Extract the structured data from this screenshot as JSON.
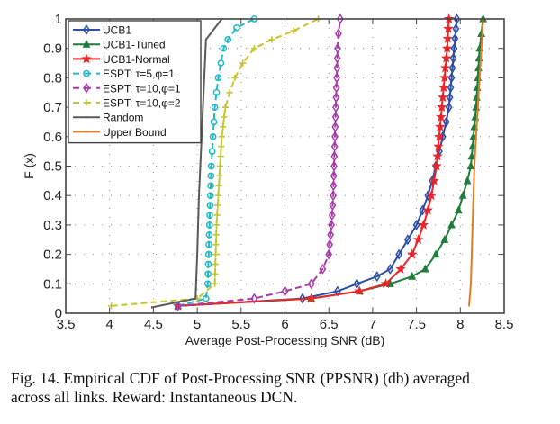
{
  "chart_data": {
    "type": "line",
    "title": "",
    "xlabel": "Average Post-Processing SNR (dB)",
    "ylabel": "F (x)",
    "xlim": [
      3.5,
      8.5
    ],
    "ylim": [
      0,
      1
    ],
    "xticks": [
      3.5,
      4,
      4.5,
      5,
      5.5,
      6,
      6.5,
      7,
      7.5,
      8,
      8.5
    ],
    "xtick_labels": [
      "3.5",
      "4",
      "4.5",
      "5",
      "5.5",
      "6",
      "6.5",
      "7",
      "7.5",
      "8",
      "8.5"
    ],
    "yticks": [
      0,
      0.1,
      0.2,
      0.3,
      0.4,
      0.5,
      0.6,
      0.7,
      0.8,
      0.9,
      1
    ],
    "ytick_labels": [
      "0",
      "0.1",
      "0.2",
      "0.3",
      "0.4",
      "0.5",
      "0.6",
      "0.7",
      "0.8",
      "0.9",
      "1"
    ],
    "grid": true,
    "legend_position": "top-left",
    "series": [
      {
        "name": "UCB1",
        "color": "#2e4fa8",
        "dash": "solid",
        "marker": "diamond",
        "x": [
          4.78,
          6.2,
          6.6,
          6.82,
          7.05,
          7.2,
          7.3,
          7.4,
          7.5,
          7.57,
          7.63,
          7.68,
          7.72,
          7.76,
          7.8,
          7.84,
          7.87,
          7.9,
          7.93,
          7.96
        ],
        "y": [
          0.025,
          0.05,
          0.075,
          0.1,
          0.125,
          0.15,
          0.2,
          0.25,
          0.3,
          0.35,
          0.4,
          0.45,
          0.5,
          0.55,
          0.6,
          0.65,
          0.7,
          0.8,
          0.9,
          1.0
        ]
      },
      {
        "name": "UCB1-Tuned",
        "color": "#1e7d3a",
        "dash": "solid",
        "marker": "triangle",
        "x": [
          4.78,
          6.3,
          6.85,
          7.2,
          7.45,
          7.6,
          7.72,
          7.82,
          7.9,
          7.98,
          8.03,
          8.08,
          8.12,
          8.15,
          8.18,
          8.2,
          8.22,
          8.24,
          8.26
        ],
        "y": [
          0.025,
          0.05,
          0.075,
          0.1,
          0.125,
          0.15,
          0.2,
          0.25,
          0.3,
          0.35,
          0.4,
          0.45,
          0.5,
          0.6,
          0.7,
          0.8,
          0.9,
          0.95,
          1.0
        ]
      },
      {
        "name": "UCB1-Normal",
        "color": "#e8262b",
        "dash": "solid",
        "marker": "star",
        "x": [
          4.78,
          6.3,
          6.85,
          7.15,
          7.32,
          7.45,
          7.52,
          7.58,
          7.63,
          7.67,
          7.7,
          7.73,
          7.76,
          7.79,
          7.82,
          7.85,
          7.87
        ],
        "y": [
          0.025,
          0.05,
          0.075,
          0.1,
          0.15,
          0.2,
          0.25,
          0.3,
          0.35,
          0.4,
          0.45,
          0.5,
          0.6,
          0.7,
          0.8,
          0.9,
          1.0
        ]
      },
      {
        "name": "ESPT: τ=5,φ=1",
        "color": "#22b8c4",
        "dash": "dashed",
        "marker": "circle",
        "x": [
          4.78,
          5.1,
          5.12,
          5.13,
          5.14,
          5.15,
          5.16,
          5.17,
          5.18,
          5.19,
          5.2,
          5.22,
          5.24,
          5.27,
          5.3,
          5.35,
          5.45,
          5.65
        ],
        "y": [
          0.025,
          0.05,
          0.1,
          0.2,
          0.3,
          0.4,
          0.5,
          0.55,
          0.6,
          0.65,
          0.7,
          0.75,
          0.8,
          0.85,
          0.9,
          0.93,
          0.97,
          1.0
        ]
      },
      {
        "name": "ESPT: τ=10,φ=1",
        "color": "#a73aa8",
        "dash": "dashed",
        "marker": "diamond",
        "x": [
          4.78,
          5.65,
          6.0,
          6.3,
          6.43,
          6.5,
          6.53,
          6.55,
          6.56,
          6.57,
          6.58,
          6.59,
          6.6,
          6.61,
          6.63
        ],
        "y": [
          0.025,
          0.05,
          0.075,
          0.1,
          0.15,
          0.2,
          0.3,
          0.4,
          0.5,
          0.6,
          0.7,
          0.8,
          0.9,
          0.95,
          1.0
        ]
      },
      {
        "name": "ESPT: τ=10,φ=2",
        "color": "#c4c431",
        "dash": "dashed",
        "marker": "plus",
        "x": [
          4.02,
          5.0,
          5.2,
          5.21,
          5.22,
          5.24,
          5.26,
          5.28,
          5.32,
          5.37,
          5.43,
          5.52,
          5.65,
          5.85,
          6.1,
          6.38
        ],
        "y": [
          0.025,
          0.05,
          0.1,
          0.2,
          0.3,
          0.4,
          0.5,
          0.6,
          0.7,
          0.75,
          0.8,
          0.85,
          0.9,
          0.93,
          0.96,
          1.0
        ]
      },
      {
        "name": "Random",
        "color": "#5a5a5a",
        "dash": "solid",
        "marker": "point",
        "x": [
          4.48,
          4.98,
          5.0,
          5.02,
          5.05,
          5.08,
          5.1,
          5.28
        ],
        "y": [
          0.02,
          0.05,
          0.2,
          0.4,
          0.6,
          0.8,
          0.93,
          1.0
        ]
      },
      {
        "name": "Upper Bound",
        "color": "#e07c23",
        "dash": "solid",
        "marker": "point",
        "x": [
          8.1,
          8.12,
          8.13,
          8.14,
          8.15,
          8.16,
          8.18,
          8.2,
          8.22,
          8.24,
          8.26
        ],
        "y": [
          0.025,
          0.1,
          0.2,
          0.3,
          0.4,
          0.5,
          0.6,
          0.7,
          0.8,
          0.9,
          1.0
        ]
      }
    ]
  },
  "caption": {
    "line1": "Fig. 14.  Empirical CDF of Post-Processing SNR (PPSNR) (db) averaged",
    "line2": "across all links. Reward: Instantaneous DCN."
  }
}
